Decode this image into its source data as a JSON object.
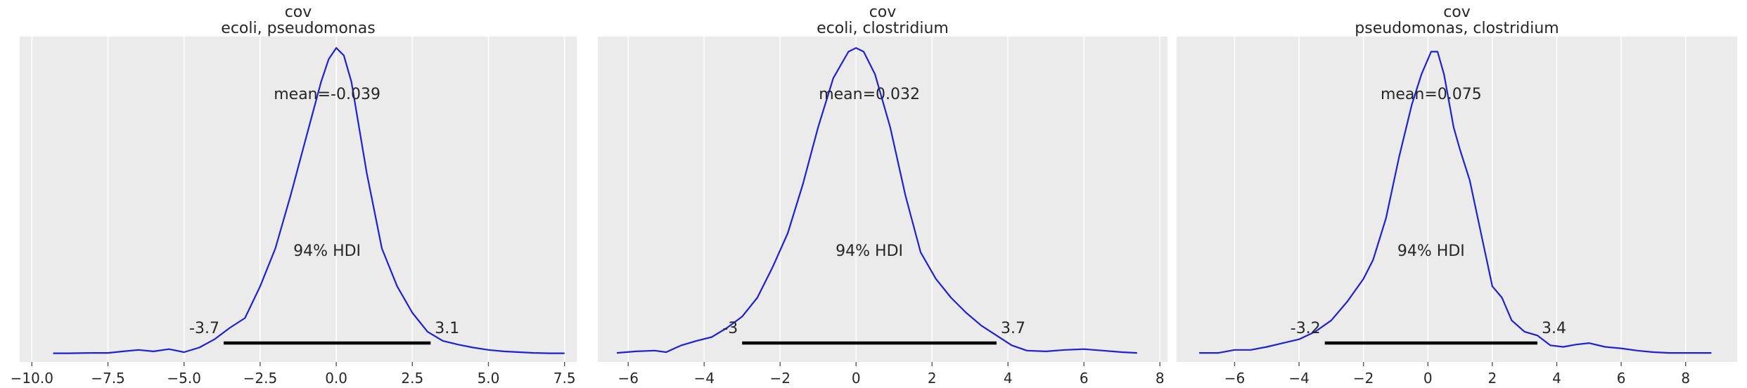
{
  "chart_data": [
    {
      "type": "line",
      "title": "cov",
      "subtitle": "ecoli, pseudomonas",
      "xlabel": "",
      "ylabel": "",
      "xlim": [
        -10.4,
        7.9
      ],
      "ylim": [
        -0.01,
        0.42
      ],
      "xticks": [
        -10.0,
        -7.5,
        -5.0,
        -2.5,
        0.0,
        2.5,
        5.0,
        7.5
      ],
      "xtick_labels": [
        "−10.0",
        "−7.5",
        "−5.0",
        "−2.5",
        "0.0",
        "2.5",
        "5.0",
        "7.5"
      ],
      "grid": true,
      "color": "#1f1fd6",
      "x": [
        -9.3,
        -8.8,
        -8.0,
        -7.5,
        -7.0,
        -6.5,
        -6.0,
        -5.5,
        -5.0,
        -4.5,
        -4.0,
        -3.5,
        -3.0,
        -2.5,
        -2.0,
        -1.5,
        -1.0,
        -0.5,
        -0.25,
        0.0,
        0.25,
        0.5,
        1.0,
        1.5,
        2.0,
        2.5,
        3.0,
        3.5,
        4.0,
        4.5,
        5.0,
        5.5,
        6.0,
        6.5,
        7.0,
        7.5
      ],
      "y": [
        0.0015,
        0.0015,
        0.002,
        0.002,
        0.004,
        0.006,
        0.004,
        0.007,
        0.003,
        0.009,
        0.02,
        0.035,
        0.048,
        0.09,
        0.14,
        0.21,
        0.285,
        0.36,
        0.39,
        0.405,
        0.395,
        0.36,
        0.24,
        0.14,
        0.09,
        0.055,
        0.03,
        0.018,
        0.013,
        0.009,
        0.006,
        0.004,
        0.003,
        0.002,
        0.0015,
        0.0015
      ],
      "mean_label": "mean=-0.039",
      "hdi_label": "94% HDI",
      "hdi": [
        -3.7,
        3.1
      ],
      "hdi_low_label": "-3.7",
      "hdi_high_label": "3.1"
    },
    {
      "type": "line",
      "title": "cov",
      "subtitle": "ecoli, clostridium",
      "xlabel": "",
      "ylabel": "",
      "xlim": [
        -6.8,
        8.2
      ],
      "ylim": [
        -0.01,
        0.42
      ],
      "xticks": [
        -6,
        -4,
        -2,
        0,
        2,
        4,
        6,
        8
      ],
      "xtick_labels": [
        "−6",
        "−4",
        "−2",
        "0",
        "2",
        "4",
        "6",
        "8"
      ],
      "grid": true,
      "color": "#1f1fd6",
      "x": [
        -6.3,
        -5.8,
        -5.3,
        -5.0,
        -4.6,
        -4.2,
        -3.8,
        -3.4,
        -3.0,
        -2.6,
        -2.2,
        -1.8,
        -1.4,
        -1.0,
        -0.6,
        -0.2,
        0.0,
        0.2,
        0.5,
        0.9,
        1.3,
        1.7,
        2.1,
        2.5,
        2.9,
        3.3,
        3.7,
        4.1,
        4.5,
        5.0,
        5.5,
        6.0,
        6.5,
        7.0,
        7.4
      ],
      "y": [
        0.002,
        0.004,
        0.005,
        0.003,
        0.012,
        0.018,
        0.023,
        0.035,
        0.05,
        0.075,
        0.115,
        0.16,
        0.225,
        0.3,
        0.365,
        0.4,
        0.405,
        0.4,
        0.37,
        0.3,
        0.21,
        0.135,
        0.1,
        0.075,
        0.055,
        0.038,
        0.025,
        0.012,
        0.005,
        0.004,
        0.006,
        0.007,
        0.005,
        0.003,
        0.002
      ],
      "mean_label": "mean=0.032",
      "hdi_label": "94% HDI",
      "hdi": [
        -3.0,
        3.7
      ],
      "hdi_low_label": "-3",
      "hdi_high_label": "3.7"
    },
    {
      "type": "line",
      "title": "cov",
      "subtitle": "pseudomonas, clostridium",
      "xlabel": "",
      "ylabel": "",
      "xlim": [
        -7.8,
        9.6
      ],
      "ylim": [
        -0.01,
        0.42
      ],
      "xticks": [
        -6,
        -4,
        -2,
        0,
        2,
        4,
        6,
        8
      ],
      "xtick_labels": [
        "−6",
        "−4",
        "−2",
        "0",
        "2",
        "4",
        "6",
        "8"
      ],
      "grid": true,
      "color": "#1f1fd6",
      "x": [
        -7.1,
        -6.5,
        -6.0,
        -5.5,
        -5.0,
        -4.5,
        -4.0,
        -3.5,
        -3.0,
        -2.5,
        -2.0,
        -1.7,
        -1.3,
        -0.9,
        -0.5,
        -0.2,
        0.1,
        0.3,
        0.5,
        0.8,
        1.0,
        1.3,
        1.7,
        2.0,
        2.3,
        2.6,
        3.0,
        3.4,
        3.8,
        4.2,
        4.6,
        5.0,
        5.5,
        6.0,
        6.5,
        7.0,
        7.5,
        8.0,
        8.8
      ],
      "y": [
        0.002,
        0.002,
        0.006,
        0.006,
        0.01,
        0.015,
        0.02,
        0.03,
        0.045,
        0.07,
        0.1,
        0.125,
        0.18,
        0.26,
        0.33,
        0.37,
        0.4,
        0.4,
        0.37,
        0.3,
        0.27,
        0.23,
        0.15,
        0.09,
        0.075,
        0.045,
        0.03,
        0.025,
        0.012,
        0.01,
        0.013,
        0.015,
        0.01,
        0.008,
        0.005,
        0.003,
        0.002,
        0.002,
        0.002
      ],
      "mean_label": "mean=0.075",
      "hdi_label": "94% HDI",
      "hdi": [
        -3.2,
        3.4
      ],
      "hdi_low_label": "-3.2",
      "hdi_high_label": "3.4"
    }
  ]
}
